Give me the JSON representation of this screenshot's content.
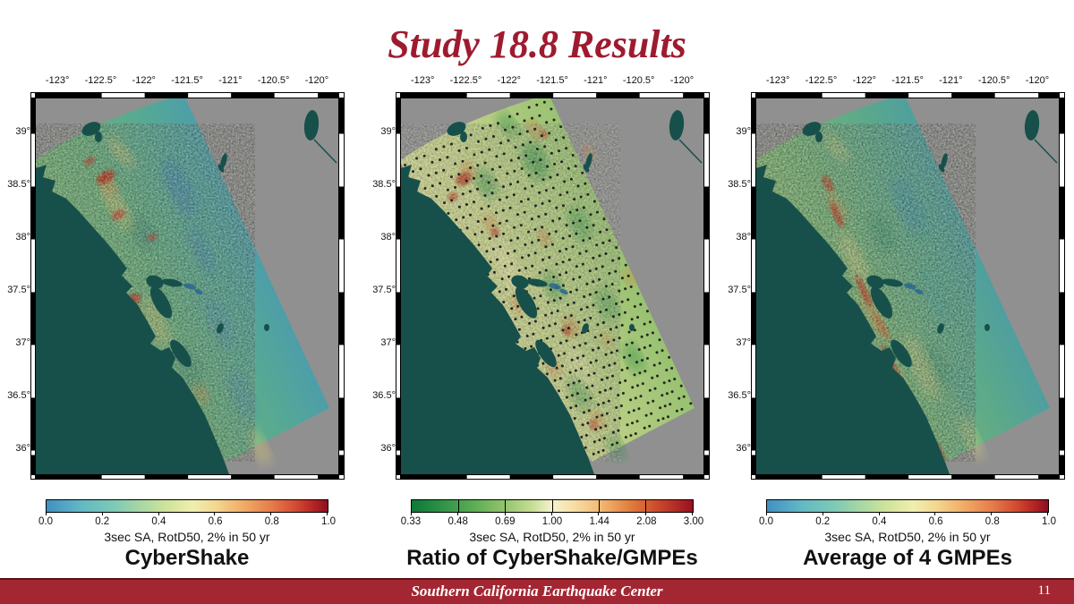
{
  "slide": {
    "title": "Study 18.8 Results",
    "title_color": "#9e1b2f",
    "background": "#ffffff"
  },
  "axes": {
    "lon_labels": [
      "-123°",
      "-122.5°",
      "-122°",
      "-121.5°",
      "-121°",
      "-120.5°",
      "-120°"
    ],
    "lat_labels": [
      "39°",
      "38.5°",
      "38°",
      "37.5°",
      "37°",
      "36.5°",
      "36°"
    ]
  },
  "map_colors": {
    "no_data_gray": "#909090",
    "water": "#17504b",
    "delta_water": "#2b6a8e",
    "site_dot": "#151515"
  },
  "panels": [
    {
      "id": "cybershake",
      "title": "CyberShake",
      "site_dots": false,
      "colorbar": {
        "label": "3sec SA, RotD50, 2% in 50 yr",
        "ticks": [
          "0.0",
          "0.2",
          "0.4",
          "0.6",
          "0.8",
          "1.0"
        ],
        "segmented": false,
        "gradient": [
          [
            "0%",
            "#4190c2"
          ],
          [
            "12%",
            "#62b8c4"
          ],
          [
            "24%",
            "#7ec9b6"
          ],
          [
            "34%",
            "#abd8a2"
          ],
          [
            "44%",
            "#d4e59c"
          ],
          [
            "52%",
            "#f0eeb0"
          ],
          [
            "60%",
            "#f3d892"
          ],
          [
            "70%",
            "#f1ac66"
          ],
          [
            "80%",
            "#e67c4b"
          ],
          [
            "88%",
            "#d44f34"
          ],
          [
            "94%",
            "#bb2a26"
          ],
          [
            "100%",
            "#8e0e22"
          ]
        ]
      }
    },
    {
      "id": "ratio",
      "title": "Ratio of CyberShake/GMPEs",
      "site_dots": true,
      "colorbar": {
        "label": "3sec SA, RotD50, 2% in 50 yr",
        "ticks": [
          "0.33",
          "0.48",
          "0.69",
          "1.00",
          "1.44",
          "2.08",
          "3.00"
        ],
        "segmented": true,
        "gradient": [
          [
            "0%",
            "#0e7839"
          ],
          [
            "10%",
            "#2b9147"
          ],
          [
            "22%",
            "#5cad55"
          ],
          [
            "33%",
            "#92c46c"
          ],
          [
            "43%",
            "#c8dd96"
          ],
          [
            "50%",
            "#f5f2cf"
          ],
          [
            "57%",
            "#f8e0a9"
          ],
          [
            "67%",
            "#f3ba74"
          ],
          [
            "78%",
            "#e07c3d"
          ],
          [
            "88%",
            "#ca472b"
          ],
          [
            "100%",
            "#981120"
          ]
        ]
      }
    },
    {
      "id": "gmpes",
      "title": "Average of 4 GMPEs",
      "site_dots": false,
      "colorbar": {
        "label": "3sec SA, RotD50, 2% in 50 yr",
        "ticks": [
          "0.0",
          "0.2",
          "0.4",
          "0.6",
          "0.8",
          "1.0"
        ],
        "segmented": false,
        "gradient": [
          [
            "0%",
            "#4190c2"
          ],
          [
            "12%",
            "#62b8c4"
          ],
          [
            "24%",
            "#7ec9b6"
          ],
          [
            "34%",
            "#abd8a2"
          ],
          [
            "44%",
            "#d4e59c"
          ],
          [
            "52%",
            "#f0eeb0"
          ],
          [
            "60%",
            "#f3d892"
          ],
          [
            "70%",
            "#f1ac66"
          ],
          [
            "80%",
            "#e67c4b"
          ],
          [
            "88%",
            "#d44f34"
          ],
          [
            "94%",
            "#bb2a26"
          ],
          [
            "100%",
            "#8e0e22"
          ]
        ]
      }
    }
  ],
  "footer": {
    "organization": "Southern California Earthquake Center",
    "page_number": "11",
    "band_color": "#a22732",
    "rule_color": "#591016"
  }
}
